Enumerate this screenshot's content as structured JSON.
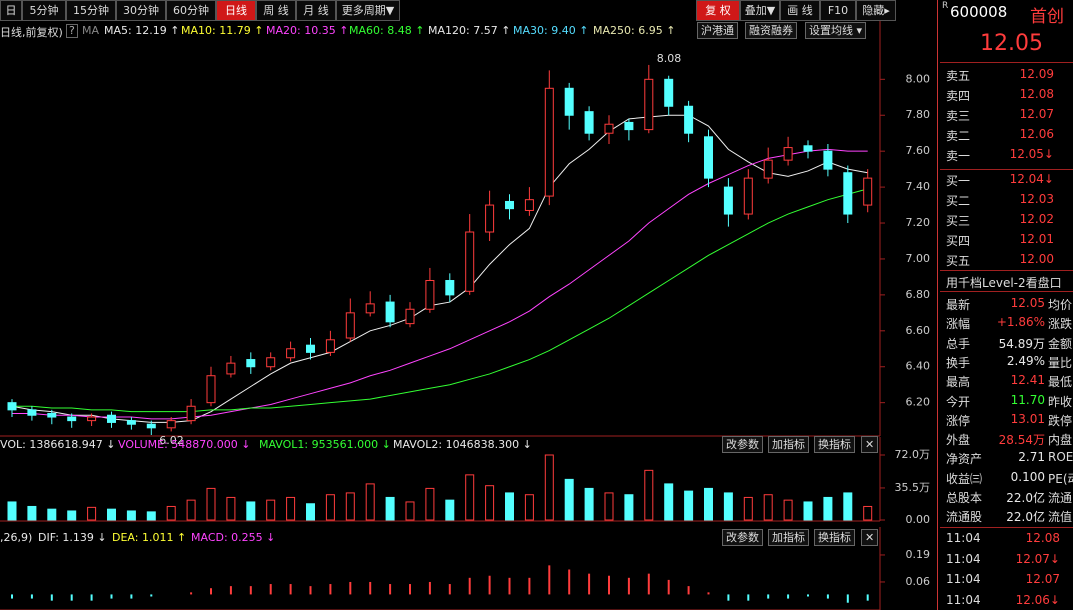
{
  "toolbar": {
    "periods": [
      "日",
      "5分钟",
      "15分钟",
      "30分钟",
      "60分钟",
      "日线",
      "周 线",
      "月 线",
      "更多周期▼"
    ],
    "active_period": 5,
    "tools": [
      "复 权",
      "叠加▼",
      "画 线",
      "F10",
      "隐藏▸"
    ],
    "active_tool": 0
  },
  "indicator_bar": {
    "prefix": "日线,前复权)",
    "help": "?",
    "ma": "MA",
    "items": [
      {
        "text": "MA5: 12.19 ↑",
        "color": "#e8e8e8"
      },
      {
        "text": "MA10: 11.79 ↑",
        "color": "#ffff33"
      },
      {
        "text": "MA20: 10.35 ↑",
        "color": "#ff44ff"
      },
      {
        "text": "MA60: 8.48 ↑",
        "color": "#33ff33"
      },
      {
        "text": "MA120: 7.57 ↑",
        "color": "#e8e8e8"
      },
      {
        "text": "MA30: 9.40 ↑",
        "color": "#55ddff"
      },
      {
        "text": "MA250: 6.95 ↑",
        "color": "#e8e8b0"
      }
    ],
    "buttons": [
      "沪港通",
      "融资融券",
      "设置均线 ▾"
    ]
  },
  "volume_bar": {
    "items": [
      {
        "text": "VOL: 1386618.947 ↓",
        "color": "#e8e8e8"
      },
      {
        "text": "VOLUME: 548870.000 ↓",
        "color": "#ff44ff"
      },
      {
        "text": "MAVOL1: 953561.000 ↓",
        "color": "#33ff33"
      },
      {
        "text": "MAVOL2: 1046838.300 ↓",
        "color": "#e8e8e8"
      }
    ],
    "buttons": [
      "改参数",
      "加指标",
      "换指标",
      "✕"
    ]
  },
  "macd_bar": {
    "items": [
      {
        "text": ",26,9)",
        "color": "#e8e8e8"
      },
      {
        "text": "DIF: 1.139 ↓",
        "color": "#e8e8e8"
      },
      {
        "text": "DEA: 1.011 ↑",
        "color": "#ffff33"
      },
      {
        "text": "MACD: 0.255 ↓",
        "color": "#ff44ff"
      }
    ],
    "buttons": [
      "改参数",
      "加指标",
      "换指标",
      "✕"
    ]
  },
  "chart_data": [
    {
      "type": "candlestick",
      "open": [
        6.2,
        6.16,
        6.14,
        6.12,
        6.1,
        6.13,
        6.1,
        6.08,
        6.06,
        6.1,
        6.2,
        6.36,
        6.44,
        6.4,
        6.45,
        6.52,
        6.48,
        6.56,
        6.7,
        6.76,
        6.64,
        6.72,
        6.88,
        6.82,
        7.15,
        7.32,
        7.27,
        7.35,
        7.95,
        7.82,
        7.7,
        7.76,
        7.72,
        8.0,
        7.85,
        7.68,
        7.4,
        7.25,
        7.45,
        7.55,
        7.63,
        7.6,
        7.48,
        7.3
      ],
      "high": [
        6.22,
        6.18,
        6.16,
        6.14,
        6.14,
        6.15,
        6.12,
        6.1,
        6.12,
        6.22,
        6.4,
        6.46,
        6.48,
        6.48,
        6.54,
        6.56,
        6.6,
        6.78,
        6.82,
        6.8,
        6.76,
        6.95,
        6.92,
        7.25,
        7.38,
        7.36,
        7.4,
        8.05,
        7.98,
        7.85,
        7.8,
        7.78,
        8.08,
        8.02,
        7.88,
        7.72,
        7.45,
        7.5,
        7.62,
        7.68,
        7.66,
        7.64,
        7.52,
        7.5
      ],
      "low": [
        6.12,
        6.1,
        6.08,
        6.06,
        6.07,
        6.06,
        6.05,
        6.02,
        6.04,
        6.08,
        6.18,
        6.34,
        6.36,
        6.38,
        6.43,
        6.44,
        6.46,
        6.54,
        6.68,
        6.62,
        6.62,
        6.7,
        6.76,
        6.8,
        7.1,
        7.22,
        7.24,
        7.3,
        7.72,
        7.66,
        7.64,
        7.66,
        7.7,
        7.8,
        7.65,
        7.4,
        7.18,
        7.22,
        7.42,
        7.52,
        7.56,
        7.46,
        7.2,
        7.26
      ],
      "close": [
        6.16,
        6.13,
        6.12,
        6.1,
        6.12,
        6.09,
        6.08,
        6.06,
        6.1,
        6.18,
        6.35,
        6.42,
        6.4,
        6.45,
        6.5,
        6.48,
        6.55,
        6.7,
        6.75,
        6.65,
        6.72,
        6.88,
        6.8,
        7.15,
        7.3,
        7.28,
        7.33,
        7.95,
        7.8,
        7.7,
        7.75,
        7.72,
        8.0,
        7.85,
        7.7,
        7.45,
        7.25,
        7.45,
        7.55,
        7.62,
        7.6,
        7.5,
        7.25,
        7.45
      ],
      "up_color": "#ff3c3c",
      "down_color": "#54ffff",
      "series": [
        {
          "color": "#f0f0f0",
          "values": [
            6.18,
            6.16,
            6.15,
            6.13,
            6.13,
            6.11,
            6.1,
            6.09,
            6.09,
            6.1,
            6.15,
            6.22,
            6.29,
            6.36,
            6.42,
            6.45,
            6.48,
            6.54,
            6.6,
            6.63,
            6.67,
            6.74,
            6.76,
            6.84,
            6.97,
            7.08,
            7.17,
            7.4,
            7.53,
            7.61,
            7.71,
            7.78,
            7.79,
            7.8,
            7.8,
            7.74,
            7.61,
            7.54,
            7.48,
            7.46,
            7.49,
            7.54,
            7.5,
            7.48
          ]
        },
        {
          "color": "#ff44ff",
          "values": [
            6.14,
            6.14,
            6.13,
            6.13,
            6.12,
            6.12,
            6.12,
            6.11,
            6.11,
            6.12,
            6.13,
            6.15,
            6.17,
            6.19,
            6.22,
            6.25,
            6.28,
            6.31,
            6.35,
            6.38,
            6.42,
            6.46,
            6.5,
            6.55,
            6.6,
            6.65,
            6.71,
            6.79,
            6.86,
            6.94,
            7.02,
            7.1,
            7.2,
            7.28,
            7.36,
            7.42,
            7.47,
            7.52,
            7.56,
            7.58,
            7.6,
            7.61,
            7.6,
            7.6
          ]
        },
        {
          "color": "#33ff33",
          "values": [
            6.18,
            6.18,
            6.17,
            6.17,
            6.16,
            6.16,
            6.15,
            6.15,
            6.15,
            6.15,
            6.16,
            6.16,
            6.17,
            6.17,
            6.18,
            6.19,
            6.2,
            6.21,
            6.22,
            6.24,
            6.26,
            6.28,
            6.3,
            6.33,
            6.36,
            6.4,
            6.44,
            6.49,
            6.55,
            6.61,
            6.67,
            6.74,
            6.81,
            6.88,
            6.95,
            7.02,
            7.08,
            7.14,
            7.2,
            7.25,
            7.29,
            7.33,
            7.36,
            7.39
          ]
        }
      ],
      "annotations": [
        {
          "text": "8.08",
          "value": 8.08
        },
        {
          "text": "6.02",
          "value": 6.02
        }
      ],
      "ylim": [
        6.02,
        8.23
      ],
      "yticks": [
        {
          "value": 8,
          "label": "8.00"
        },
        {
          "value": 7.8,
          "label": "7.80"
        },
        {
          "value": 7.6,
          "label": "7.60"
        },
        {
          "value": 7.4,
          "label": "7.40"
        },
        {
          "value": 7.2,
          "label": "7.20"
        },
        {
          "value": 7,
          "label": "7.00"
        },
        {
          "value": 6.8,
          "label": "6.80"
        },
        {
          "value": 6.6,
          "label": "6.60"
        },
        {
          "value": 6.4,
          "label": "6.40"
        },
        {
          "value": 6.2,
          "label": "6.20"
        }
      ]
    },
    {
      "type": "bar",
      "values": [
        20,
        15,
        12,
        10,
        14,
        12,
        10,
        9,
        15,
        22,
        35,
        25,
        20,
        22,
        25,
        18,
        28,
        30,
        40,
        25,
        20,
        35,
        22,
        50,
        38,
        30,
        28,
        72,
        45,
        35,
        30,
        28,
        55,
        40,
        32,
        35,
        30,
        25,
        28,
        22,
        20,
        25,
        30,
        15
      ],
      "ylim": [
        0,
        72
      ],
      "yticks": [
        {
          "value": 72,
          "label": "72.0万"
        },
        {
          "value": 35.5,
          "label": "35.5万"
        },
        {
          "value": 0,
          "label": "0.00"
        }
      ]
    },
    {
      "type": "bar",
      "values": [
        -0.02,
        -0.02,
        -0.03,
        -0.03,
        -0.03,
        -0.02,
        -0.02,
        -0.01,
        0,
        0.01,
        0.03,
        0.04,
        0.04,
        0.05,
        0.05,
        0.04,
        0.05,
        0.06,
        0.06,
        0.05,
        0.05,
        0.06,
        0.05,
        0.08,
        0.09,
        0.08,
        0.08,
        0.14,
        0.12,
        0.1,
        0.09,
        0.08,
        0.1,
        0.07,
        0.04,
        0.01,
        -0.03,
        -0.03,
        -0.02,
        -0.02,
        -0.01,
        -0.02,
        -0.04,
        -0.03
      ],
      "up_color": "#ff3c3c",
      "down_color": "#54ffff",
      "ylim": [
        -0.075,
        0.238
      ],
      "yticks": [
        0.19,
        0.06
      ]
    }
  ],
  "quote": {
    "marker": "R",
    "code": "600008",
    "name": "首创",
    "price": "12.05",
    "sell": [
      {
        "label": "卖五",
        "price": "12.09"
      },
      {
        "label": "卖四",
        "price": "12.08"
      },
      {
        "label": "卖三",
        "price": "12.07"
      },
      {
        "label": "卖二",
        "price": "12.06"
      },
      {
        "label": "卖一",
        "price": "12.05↓"
      }
    ],
    "buy": [
      {
        "label": "买一",
        "price": "12.04↓"
      },
      {
        "label": "买二",
        "price": "12.03"
      },
      {
        "label": "买三",
        "price": "12.02"
      },
      {
        "label": "买四",
        "price": "12.01"
      },
      {
        "label": "买五",
        "price": "12.00"
      }
    ],
    "level2": "用千档Level-2看盘口",
    "info": [
      {
        "label": "最新",
        "value": "12.05",
        "color": "#ff3c3c",
        "extra": "均价"
      },
      {
        "label": "涨幅",
        "value": "+1.86%",
        "color": "#ff3c3c",
        "extra": "涨跌"
      },
      {
        "label": "总手",
        "value": "54.89万",
        "color": "#e8e8e8",
        "extra": "金额"
      },
      {
        "label": "换手",
        "value": "2.49%",
        "color": "#e8e8e8",
        "extra": "量比"
      },
      {
        "label": "最高",
        "value": "12.41",
        "color": "#ff3c3c",
        "extra": "最低"
      },
      {
        "label": "今开",
        "value": "11.70",
        "color": "#33ff33",
        "extra": "昨收"
      },
      {
        "label": "涨停",
        "value": "13.01",
        "color": "#ff3c3c",
        "extra": "跌停"
      },
      {
        "label": "外盘",
        "value": "28.54万",
        "color": "#ff3c3c",
        "extra": "内盘"
      },
      {
        "label": "净资产",
        "value": "2.71",
        "color": "#e8e8e8",
        "extra": "ROE"
      },
      {
        "label": "收益㈢",
        "value": "0.100",
        "color": "#e8e8e8",
        "extra": "PE(动)"
      },
      {
        "label": "总股本",
        "value": "22.0亿",
        "color": "#e8e8e8",
        "extra": "流通"
      },
      {
        "label": "流通股",
        "value": "22.0亿",
        "color": "#e8e8e8",
        "extra": "流值"
      }
    ],
    "ticks": [
      {
        "time": "11:04",
        "price": "12.08"
      },
      {
        "time": "11:04",
        "price": "12.07↓"
      },
      {
        "time": "11:04",
        "price": "12.07"
      },
      {
        "time": "11:04",
        "price": "12.06↓"
      }
    ]
  }
}
